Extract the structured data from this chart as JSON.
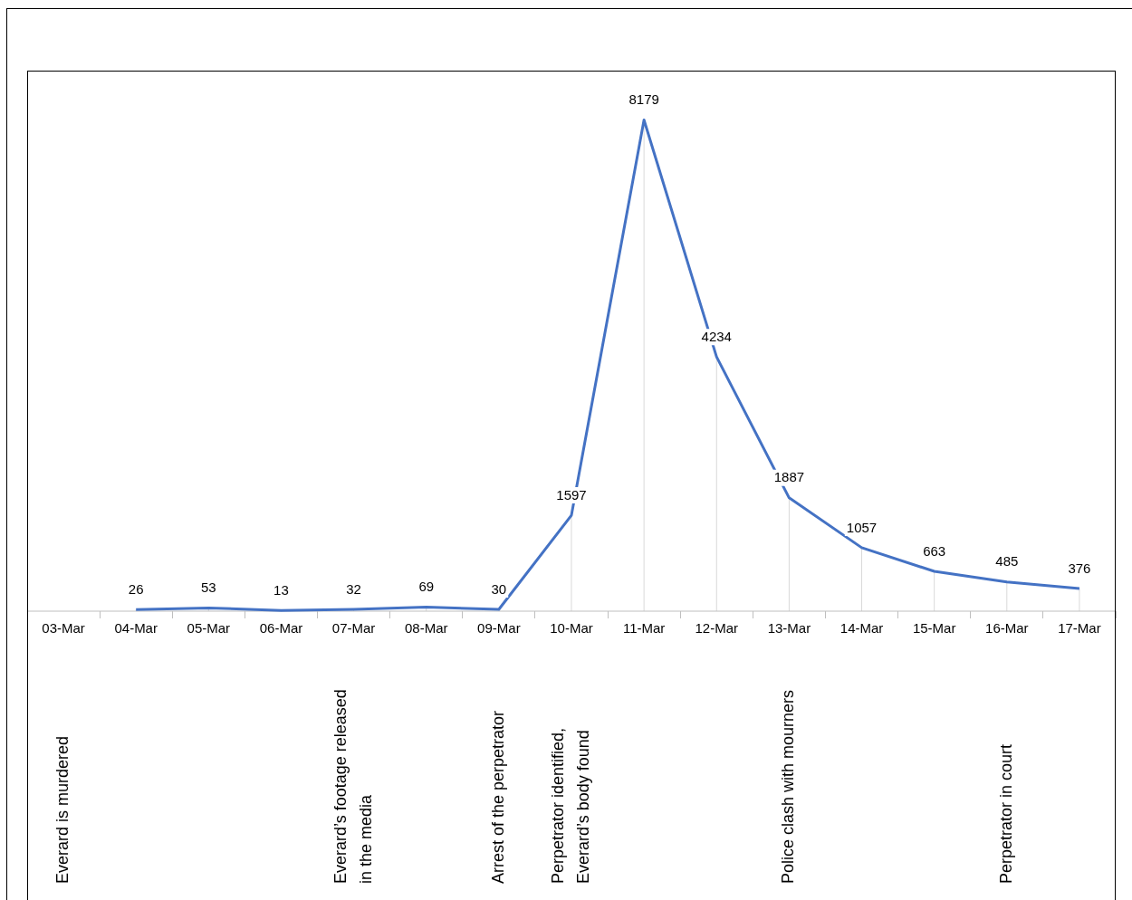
{
  "chart_data": {
    "type": "line",
    "categories": [
      "03-Mar",
      "04-Mar",
      "05-Mar",
      "06-Mar",
      "07-Mar",
      "08-Mar",
      "09-Mar",
      "10-Mar",
      "11-Mar",
      "12-Mar",
      "13-Mar",
      "14-Mar",
      "15-Mar",
      "16-Mar",
      "17-Mar"
    ],
    "values": [
      null,
      26,
      53,
      13,
      32,
      69,
      30,
      1597,
      8179,
      4234,
      1887,
      1057,
      663,
      485,
      376
    ],
    "color": "#4472c4",
    "marker": "none",
    "data_labels": true,
    "annotations": [
      "Everard is murdered",
      "Everard’s footage released in the media",
      "Arrest of the perpetrator",
      "Perpetrator identified, Everard’s body found",
      "Police clash with mourners",
      "Perpetrator in court"
    ]
  }
}
